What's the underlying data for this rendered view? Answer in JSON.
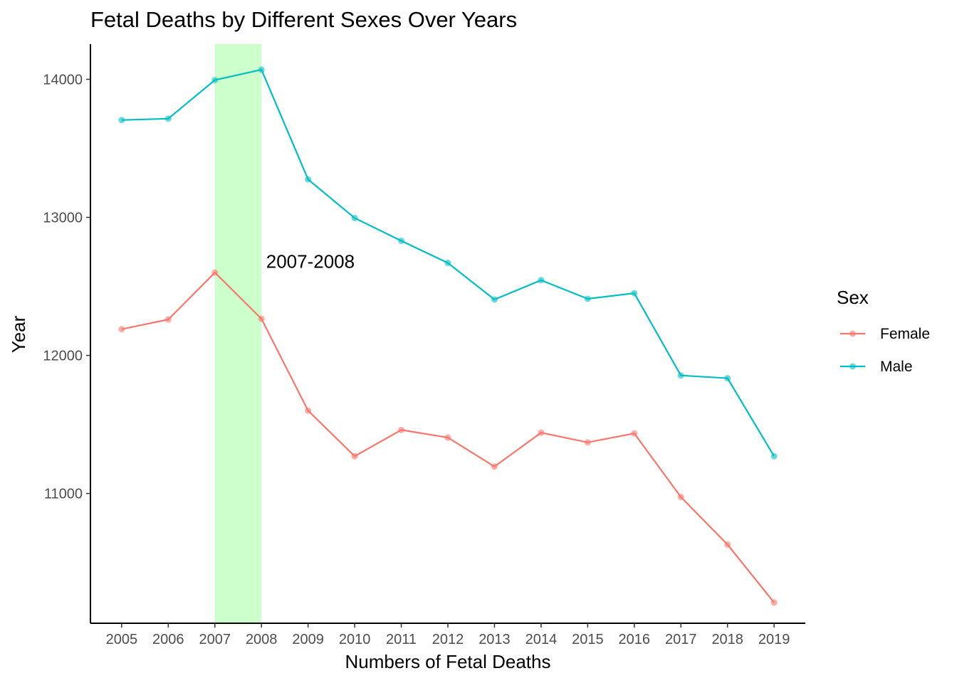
{
  "chart_data": {
    "type": "line",
    "title": "Fetal Deaths by Different Sexes Over Years",
    "xlabel": "Numbers of Fetal Deaths",
    "ylabel": "Year",
    "x": [
      2005,
      2006,
      2007,
      2008,
      2009,
      2010,
      2011,
      2012,
      2013,
      2014,
      2015,
      2016,
      2017,
      2018,
      2019
    ],
    "xlim": [
      2004.33,
      2019.67
    ],
    "ylim": [
      10060,
      14255
    ],
    "y_ticks": [
      11000,
      12000,
      13000,
      14000
    ],
    "series": [
      {
        "name": "Female",
        "color": "#F8766D",
        "values": [
          12190,
          12260,
          12600,
          12265,
          11600,
          11270,
          11460,
          11405,
          11195,
          11440,
          11370,
          11435,
          10975,
          10630,
          10210
        ]
      },
      {
        "name": "Male",
        "color": "#00BFC4",
        "values": [
          13705,
          13715,
          13995,
          14070,
          13275,
          12995,
          12830,
          12670,
          12405,
          12545,
          12410,
          12450,
          11855,
          11835,
          11270
        ]
      }
    ],
    "highlight": {
      "x_start": 2007,
      "x_end": 2008,
      "color": "#ccffcc"
    },
    "annotation": {
      "text": "2007-2008",
      "x": 2008.1,
      "y": 12680
    },
    "legend": {
      "title": "Sex",
      "position": "right"
    },
    "grid": false
  }
}
